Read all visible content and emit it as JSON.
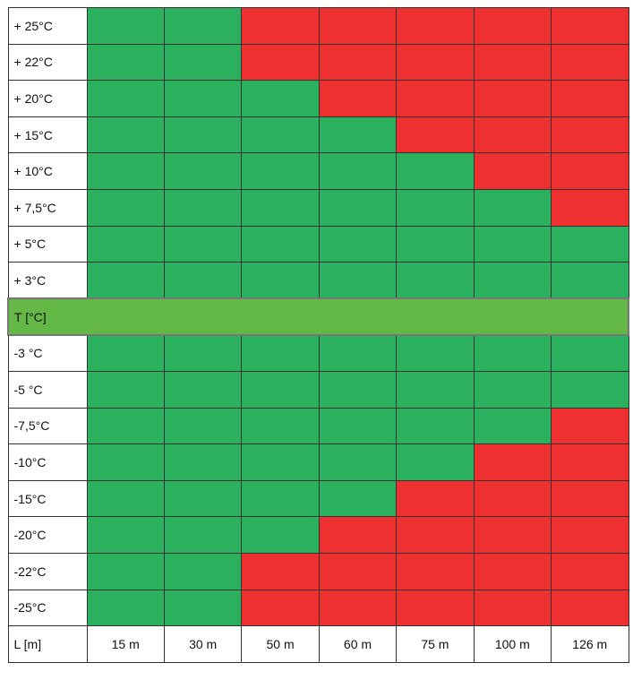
{
  "table": {
    "upper_rows": [
      {
        "label": "+ 25°C",
        "cells": [
          "#2bb15e",
          "#2bb15e",
          "#ee3030",
          "#ee3030",
          "#ee3030",
          "#ee3030",
          "#ee3030"
        ]
      },
      {
        "label": "+ 22°C",
        "cells": [
          "#2bb15e",
          "#2bb15e",
          "#ee3030",
          "#ee3030",
          "#ee3030",
          "#ee3030",
          "#ee3030"
        ]
      },
      {
        "label": "+ 20°C",
        "cells": [
          "#2bb15e",
          "#2bb15e",
          "#2bb15e",
          "#ee3030",
          "#ee3030",
          "#ee3030",
          "#ee3030"
        ]
      },
      {
        "label": "+ 15°C",
        "cells": [
          "#2bb15e",
          "#2bb15e",
          "#2bb15e",
          "#2bb15e",
          "#ee3030",
          "#ee3030",
          "#ee3030"
        ]
      },
      {
        "label": "+ 10°C",
        "cells": [
          "#2bb15e",
          "#2bb15e",
          "#2bb15e",
          "#2bb15e",
          "#2bb15e",
          "#ee3030",
          "#ee3030"
        ]
      },
      {
        "label": "+ 7,5°C",
        "cells": [
          "#2bb15e",
          "#2bb15e",
          "#2bb15e",
          "#2bb15e",
          "#2bb15e",
          "#2bb15e",
          "#ee3030"
        ]
      },
      {
        "label": "+ 5°C",
        "cells": [
          "#2bb15e",
          "#2bb15e",
          "#2bb15e",
          "#2bb15e",
          "#2bb15e",
          "#2bb15e",
          "#2bb15e"
        ]
      },
      {
        "label": "+ 3°C",
        "cells": [
          "#2bb15e",
          "#2bb15e",
          "#2bb15e",
          "#2bb15e",
          "#2bb15e",
          "#2bb15e",
          "#2bb15e"
        ]
      }
    ],
    "band": {
      "label": "T [°C]",
      "color": "#63b846"
    },
    "lower_rows": [
      {
        "label": "-3 °C",
        "cells": [
          "#2bb15e",
          "#2bb15e",
          "#2bb15e",
          "#2bb15e",
          "#2bb15e",
          "#2bb15e",
          "#2bb15e"
        ]
      },
      {
        "label": "-5 °C",
        "cells": [
          "#2bb15e",
          "#2bb15e",
          "#2bb15e",
          "#2bb15e",
          "#2bb15e",
          "#2bb15e",
          "#2bb15e"
        ]
      },
      {
        "label": "-7,5°C",
        "cells": [
          "#2bb15e",
          "#2bb15e",
          "#2bb15e",
          "#2bb15e",
          "#2bb15e",
          "#2bb15e",
          "#ee3030"
        ]
      },
      {
        "label": "-10°C",
        "cells": [
          "#2bb15e",
          "#2bb15e",
          "#2bb15e",
          "#2bb15e",
          "#2bb15e",
          "#ee3030",
          "#ee3030"
        ]
      },
      {
        "label": "-15°C",
        "cells": [
          "#2bb15e",
          "#2bb15e",
          "#2bb15e",
          "#2bb15e",
          "#ee3030",
          "#ee3030",
          "#ee3030"
        ]
      },
      {
        "label": "-20°C",
        "cells": [
          "#2bb15e",
          "#2bb15e",
          "#2bb15e",
          "#ee3030",
          "#ee3030",
          "#ee3030",
          "#ee3030"
        ]
      },
      {
        "label": "-22°C",
        "cells": [
          "#2bb15e",
          "#2bb15e",
          "#ee3030",
          "#ee3030",
          "#ee3030",
          "#ee3030",
          "#ee3030"
        ]
      },
      {
        "label": "-25°C",
        "cells": [
          "#2bb15e",
          "#2bb15e",
          "#ee3030",
          "#ee3030",
          "#ee3030",
          "#ee3030",
          "#ee3030"
        ]
      }
    ],
    "footer": {
      "label": "L [m]",
      "lengths": [
        "15 m",
        "30 m",
        "50 m",
        "60 m",
        "75 m",
        "100 m",
        "126 m"
      ]
    }
  }
}
